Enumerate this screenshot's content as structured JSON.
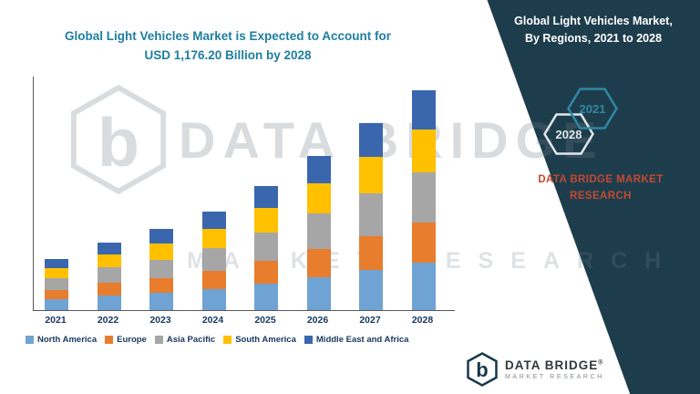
{
  "title": {
    "line1": "Global Light Vehicles Market is Expected to Account for",
    "line2": "USD 1,176.20 Billion by 2028"
  },
  "panel": {
    "heading_line1": "Global Light Vehicles Market,",
    "heading_line2": "By Regions, 2021 to 2028",
    "badge_back": "2028",
    "badge_front": "2021",
    "brand_line1": "DATA BRIDGE MARKET",
    "brand_line2": "RESEARCH",
    "bg_color": "#1e3d4c",
    "accent_color": "#c2492f"
  },
  "watermark": {
    "brand": "DATA BRIDGE",
    "sub": "MARKET RESEARCH",
    "logo_letter": "b"
  },
  "footer_logo": {
    "name": "DATA BRIDGE",
    "reg": "®",
    "sub": "MARKET RESEARCH",
    "letter": "b"
  },
  "chart_data": {
    "type": "bar",
    "stacked": true,
    "title": "Global Light Vehicles Market is Expected to Account for USD 1,176.20 Billion by 2028",
    "units": "USD Billion",
    "categories": [
      "2021",
      "2022",
      "2023",
      "2024",
      "2025",
      "2026",
      "2027",
      "2028"
    ],
    "series": [
      {
        "name": "North America",
        "color": "#6fa3d4",
        "values": [
          60,
          78,
          95,
          113,
          143,
          177,
          215,
          253
        ]
      },
      {
        "name": "Europe",
        "color": "#e87d2e",
        "values": [
          50,
          66,
          80,
          96,
          121,
          150,
          182,
          214
        ]
      },
      {
        "name": "Asia Pacific",
        "color": "#a6a6a6",
        "values": [
          62,
          82,
          100,
          120,
          152,
          188,
          228,
          268
        ]
      },
      {
        "name": "South America",
        "color": "#ffc000",
        "values": [
          55,
          70,
          86,
          103,
          130,
          162,
          196,
          230
        ]
      },
      {
        "name": "Middle East and Africa",
        "color": "#3a66ae",
        "values": [
          48,
          64,
          79,
          93,
          119,
          148,
          179,
          211.2
        ]
      }
    ],
    "totals": [
      275,
      360,
      440,
      525,
      665,
      825,
      1000,
      1176.2
    ],
    "xlabel": "",
    "ylabel": "",
    "ylim": [
      0,
      1250
    ],
    "grid": false,
    "legend_position": "bottom"
  }
}
